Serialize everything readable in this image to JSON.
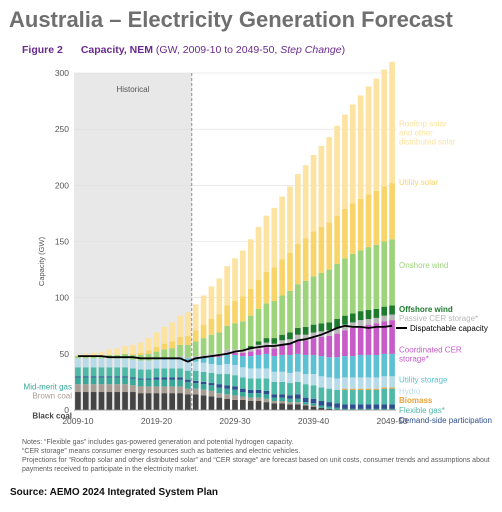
{
  "header": {
    "title": "Australia – Electricity Generation Forecast",
    "figure_label": "Figure 2",
    "figure_title": "Capacity, NEM",
    "figure_subtitle_prefix": " (GW, 2009-10 to 2049-50, ",
    "figure_subtitle_italic": "Step Change",
    "figure_subtitle_suffix": ")"
  },
  "notes": [
    "Notes: “Flexible gas” includes gas-powered generation and potential hydrogen capacity.",
    "“CER storage” means consumer energy resources such as batteries and electric vehicles.",
    "Projections for “Rooftop solar and other distributed solar” and “CER storage” are forecast based on unit costs, consumer trends and assumptions about payments received to participate in the electricity market."
  ],
  "source": "Source: AEMO 2024 Integrated System Plan",
  "colors": {
    "demand_side": "#2d4f8f",
    "flexible_gas": "#4fb9a7",
    "biomass": "#e8a33a",
    "hydro": "#b8dbe9",
    "utility_storage": "#5ec1d3",
    "coordinated_cer": "#c75cc8",
    "passive_cer": "#b9b9b9",
    "offshore_wind": "#1e7a2d",
    "onshore_wind": "#9dd47b",
    "utility_solar": "#f8d46a",
    "rooftop_solar": "#fce3a1",
    "black_coal": "#444444",
    "brown_coal": "#a89d93",
    "mid_merit_gas": "#3aa898",
    "dispatchable": "#000000",
    "historical_fill": "#e8e8e8",
    "grid": "#dddddd",
    "axis_text": "#555555"
  },
  "chart_data": {
    "type": "bar",
    "stacked": true,
    "title": "Capacity, NEM",
    "ylabel": "Capacity (GW)",
    "ylim": [
      0,
      300
    ],
    "y_ticks": [
      0,
      50,
      100,
      150,
      200,
      250,
      300
    ],
    "x_tick_labels": [
      "2009-10",
      "2019-20",
      "2029-30",
      "2039-40",
      "2049-50"
    ],
    "x_tick_index": [
      0,
      10,
      20,
      30,
      40
    ],
    "historical_label": "Historical",
    "historical_end_index": 14,
    "grid": "horizontal",
    "categories": [
      "2009-10",
      "2010-11",
      "2011-12",
      "2012-13",
      "2013-14",
      "2014-15",
      "2015-16",
      "2016-17",
      "2017-18",
      "2018-19",
      "2019-20",
      "2020-21",
      "2021-22",
      "2022-23",
      "2023-24",
      "2024-25",
      "2025-26",
      "2026-27",
      "2027-28",
      "2028-29",
      "2029-30",
      "2030-31",
      "2031-32",
      "2032-33",
      "2033-34",
      "2034-35",
      "2035-36",
      "2036-37",
      "2037-38",
      "2038-39",
      "2039-40",
      "2040-41",
      "2041-42",
      "2042-43",
      "2043-44",
      "2044-45",
      "2045-46",
      "2046-47",
      "2047-48",
      "2048-49",
      "2049-50"
    ],
    "series": [
      {
        "name": "Black coal",
        "color_key": "black_coal",
        "values": [
          16,
          16,
          16,
          16,
          16,
          16,
          16,
          16,
          15,
          15,
          15,
          15,
          15,
          15,
          14,
          14,
          13,
          12,
          11,
          10,
          9,
          9,
          8,
          8,
          7,
          6,
          6,
          5,
          5,
          4,
          3,
          2,
          1,
          0,
          0,
          0,
          0,
          0,
          0,
          0,
          0
        ]
      },
      {
        "name": "Brown coal",
        "color_key": "brown_coal",
        "values": [
          7,
          7,
          7,
          7,
          7,
          7,
          7,
          6,
          6,
          6,
          6,
          6,
          6,
          6,
          5,
          5,
          5,
          5,
          4,
          4,
          4,
          3,
          3,
          3,
          3,
          2,
          2,
          2,
          2,
          1,
          1,
          0,
          0,
          0,
          0,
          0,
          0,
          0,
          0,
          0,
          0
        ]
      },
      {
        "name": "Mid-merit gas",
        "color_key": "mid_merit_gas",
        "values": [
          6,
          6,
          6,
          6,
          6,
          6,
          6,
          6,
          6,
          6,
          6,
          6,
          6,
          6,
          6,
          5,
          5,
          5,
          5,
          5,
          5,
          4,
          4,
          4,
          4,
          3,
          3,
          3,
          3,
          2,
          2,
          2,
          2,
          2,
          1,
          1,
          1,
          1,
          1,
          1,
          1
        ]
      },
      {
        "name": "Demand-side participation",
        "color_key": "demand_side",
        "values": [
          1,
          1,
          1,
          1,
          1,
          1,
          1,
          1,
          1,
          1,
          2,
          2,
          2,
          2,
          2,
          2,
          2,
          2,
          3,
          3,
          3,
          3,
          3,
          3,
          3,
          3,
          3,
          3,
          4,
          4,
          4,
          4,
          4,
          4,
          4,
          4,
          4,
          4,
          4,
          4,
          4
        ]
      },
      {
        "name": "Flexible gas*",
        "color_key": "flexible_gas",
        "values": [
          8,
          8,
          8,
          8,
          8,
          8,
          8,
          8,
          8,
          8,
          8,
          8,
          8,
          8,
          8,
          9,
          9,
          9,
          9,
          10,
          10,
          10,
          10,
          10,
          11,
          11,
          11,
          11,
          11,
          12,
          12,
          12,
          12,
          12,
          13,
          13,
          13,
          13,
          13,
          14,
          14
        ]
      },
      {
        "name": "Biomass",
        "color_key": "biomass",
        "values": [
          0,
          0,
          0,
          0,
          0,
          0,
          0,
          0,
          0,
          0,
          0,
          0,
          0,
          0,
          0,
          0,
          0,
          0,
          0,
          0,
          0,
          0,
          0,
          0,
          0,
          0,
          0,
          0,
          0,
          0,
          0,
          0,
          0,
          0,
          1,
          1,
          1,
          1,
          1,
          1,
          1
        ]
      },
      {
        "name": "Hydro",
        "color_key": "hydro",
        "values": [
          8,
          8,
          8,
          8,
          8,
          8,
          8,
          8,
          8,
          8,
          8,
          8,
          8,
          8,
          8,
          8,
          8,
          8,
          8,
          9,
          9,
          9,
          9,
          9,
          9,
          9,
          9,
          9,
          9,
          9,
          10,
          10,
          10,
          10,
          10,
          10,
          10,
          10,
          10,
          10,
          10
        ]
      },
      {
        "name": "Utility storage",
        "color_key": "utility_storage",
        "values": [
          0,
          0,
          0,
          0,
          0,
          0,
          0,
          0,
          0,
          0,
          0,
          1,
          1,
          2,
          3,
          4,
          5,
          6,
          7,
          8,
          9,
          10,
          11,
          12,
          13,
          14,
          15,
          16,
          16,
          17,
          17,
          18,
          18,
          19,
          19,
          19,
          20,
          20,
          20,
          20,
          20
        ]
      },
      {
        "name": "Coordinated CER storage*",
        "color_key": "coordinated_cer",
        "values": [
          0,
          0,
          0,
          0,
          0,
          0,
          0,
          0,
          0,
          0,
          0,
          0,
          0,
          0,
          0,
          0,
          0,
          1,
          1,
          2,
          2,
          3,
          4,
          5,
          6,
          7,
          9,
          10,
          12,
          13,
          15,
          17,
          19,
          21,
          23,
          25,
          26,
          27,
          28,
          29,
          30
        ]
      },
      {
        "name": "Passive CER storage*",
        "color_key": "passive_cer",
        "values": [
          0,
          0,
          0,
          0,
          0,
          0,
          0,
          0,
          0,
          0,
          0,
          0,
          0,
          1,
          1,
          1,
          2,
          2,
          2,
          3,
          3,
          3,
          3,
          4,
          4,
          4,
          4,
          4,
          5,
          5,
          5,
          5,
          5,
          5,
          5,
          5,
          5,
          5,
          5,
          5,
          5
        ]
      },
      {
        "name": "Offshore wind",
        "color_key": "offshore_wind",
        "values": [
          0,
          0,
          0,
          0,
          0,
          0,
          0,
          0,
          0,
          0,
          0,
          0,
          0,
          0,
          0,
          0,
          0,
          0,
          0,
          0,
          0,
          0,
          2,
          3,
          4,
          5,
          5,
          6,
          6,
          7,
          7,
          7,
          7,
          8,
          8,
          8,
          8,
          8,
          8,
          8,
          8
        ]
      },
      {
        "name": "Onshore wind",
        "color_key": "onshore_wind",
        "values": [
          2,
          2,
          2,
          2,
          3,
          3,
          4,
          4,
          5,
          6,
          7,
          8,
          9,
          10,
          11,
          13,
          15,
          17,
          19,
          21,
          23,
          25,
          27,
          29,
          31,
          33,
          35,
          37,
          39,
          41,
          43,
          45,
          47,
          49,
          51,
          53,
          54,
          56,
          57,
          58,
          59
        ]
      },
      {
        "name": "Utility solar",
        "color_key": "utility_solar",
        "values": [
          0,
          0,
          0,
          0,
          0,
          0,
          0,
          1,
          2,
          3,
          4,
          5,
          6,
          7,
          8,
          10,
          12,
          14,
          16,
          18,
          20,
          22,
          24,
          26,
          28,
          30,
          32,
          34,
          36,
          38,
          40,
          41,
          42,
          43,
          44,
          45,
          46,
          47,
          48,
          49,
          50
        ]
      },
      {
        "name": "Rooftop solar and other distributed solar",
        "color_key": "rooftop_solar",
        "values": [
          1,
          2,
          3,
          4,
          5,
          6,
          7,
          8,
          9,
          11,
          13,
          15,
          17,
          19,
          21,
          23,
          26,
          29,
          32,
          35,
          38,
          41,
          44,
          47,
          50,
          53,
          56,
          59,
          62,
          65,
          68,
          72,
          76,
          80,
          84,
          88,
          92,
          96,
          100,
          104,
          108
        ]
      }
    ],
    "line_series": {
      "name": "Dispatchable capacity",
      "color_key": "dispatchable",
      "values": [
        48,
        48,
        48,
        48,
        47,
        47,
        47,
        47,
        46,
        46,
        46,
        46,
        46,
        46,
        43,
        46,
        47,
        48,
        49,
        50,
        52,
        53,
        55,
        56,
        57,
        57,
        58,
        59,
        62,
        63,
        65,
        67,
        70,
        73,
        75,
        74,
        74,
        73,
        74,
        74,
        75
      ]
    },
    "legend_placement": "right",
    "left_labels": [
      {
        "text": "Mid-merit gas",
        "color_key": "mid_merit_gas",
        "y": 21
      },
      {
        "text": "Brown coal",
        "color_key": "brown_coal",
        "y": 13
      },
      {
        "text": "Black coal",
        "color_key": "black_coal",
        "y": -5
      }
    ],
    "right_labels": [
      {
        "lines": [
          "Rooftop solar",
          "and other",
          "distributed solar"
        ],
        "color_key": "rooftop_solar",
        "y": 255,
        "bold": false
      },
      {
        "lines": [
          "Utility solar"
        ],
        "color_key": "utility_solar",
        "y": 203,
        "bold": false
      },
      {
        "lines": [
          "Onshore wind"
        ],
        "color_key": "onshore_wind",
        "y": 129,
        "bold": false
      },
      {
        "lines": [
          "Offshore wind"
        ],
        "color_key": "offshore_wind",
        "y": 90,
        "bold": true
      },
      {
        "lines": [
          "Passive CER storage*"
        ],
        "color_key": "passive_cer",
        "y": 82,
        "bold": false
      },
      {
        "lines": [
          "Dispatchable capacity"
        ],
        "color_key": "dispatchable",
        "y": 73,
        "bold": false,
        "marker": true
      },
      {
        "lines": [
          "Coordinated CER",
          "storage*"
        ],
        "color_key": "coordinated_cer",
        "y": 54,
        "bold": false
      },
      {
        "lines": [
          "Utility storage"
        ],
        "color_key": "utility_storage",
        "y": 27,
        "bold": false
      },
      {
        "lines": [
          "Hydro"
        ],
        "color_key": "hydro",
        "y": 17,
        "bold": false
      },
      {
        "lines": [
          "Biomass"
        ],
        "color_key": "biomass",
        "y": 9,
        "bold": true
      },
      {
        "lines": [
          "Flexible gas*"
        ],
        "color_key": "flexible_gas",
        "y": 0,
        "bold": false
      },
      {
        "lines": [
          "Demand-side participation"
        ],
        "color_key": "demand_side",
        "y": -9,
        "bold": false
      }
    ]
  }
}
